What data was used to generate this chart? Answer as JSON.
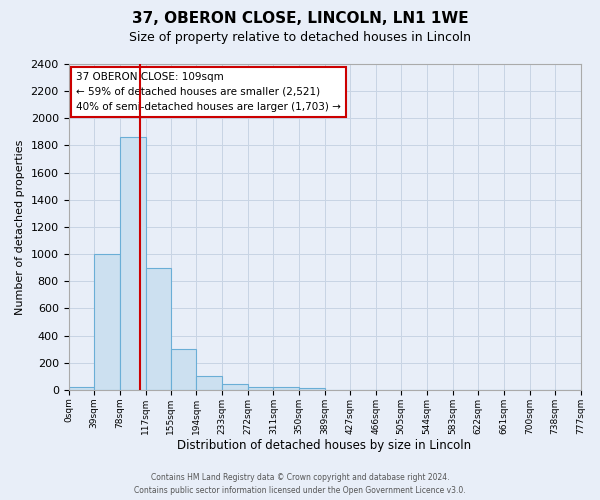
{
  "title": "37, OBERON CLOSE, LINCOLN, LN1 1WE",
  "subtitle": "Size of property relative to detached houses in Lincoln",
  "xlabel": "Distribution of detached houses by size in Lincoln",
  "ylabel": "Number of detached properties",
  "bin_edges": [
    0,
    39,
    78,
    117,
    155,
    194,
    233,
    272,
    311,
    350,
    389,
    427,
    466,
    505,
    544,
    583,
    622,
    661,
    700,
    738,
    777
  ],
  "bin_counts": [
    20,
    1000,
    1860,
    900,
    300,
    100,
    45,
    25,
    20,
    15,
    0,
    0,
    0,
    0,
    0,
    0,
    0,
    0,
    0,
    0
  ],
  "bar_face_color": "#cce0f0",
  "bar_edge_color": "#6aaed6",
  "background_color": "#e8eef8",
  "grid_color": "#c8d4e4",
  "vline_x": 109,
  "vline_color": "#cc0000",
  "ylim": [
    0,
    2400
  ],
  "annotation_line1": "37 OBERON CLOSE: 109sqm",
  "annotation_line2": "← 59% of detached houses are smaller (2,521)",
  "annotation_line3": "40% of semi-detached houses are larger (1,703) →",
  "annotation_box_facecolor": "#ffffff",
  "annotation_box_edgecolor": "#cc0000",
  "footer_line1": "Contains HM Land Registry data © Crown copyright and database right 2024.",
  "footer_line2": "Contains public sector information licensed under the Open Government Licence v3.0.",
  "tick_labels": [
    "0sqm",
    "39sqm",
    "78sqm",
    "117sqm",
    "155sqm",
    "194sqm",
    "233sqm",
    "272sqm",
    "311sqm",
    "350sqm",
    "389sqm",
    "427sqm",
    "466sqm",
    "505sqm",
    "544sqm",
    "583sqm",
    "622sqm",
    "661sqm",
    "700sqm",
    "738sqm",
    "777sqm"
  ],
  "yticks": [
    0,
    200,
    400,
    600,
    800,
    1000,
    1200,
    1400,
    1600,
    1800,
    2000,
    2200,
    2400
  ]
}
